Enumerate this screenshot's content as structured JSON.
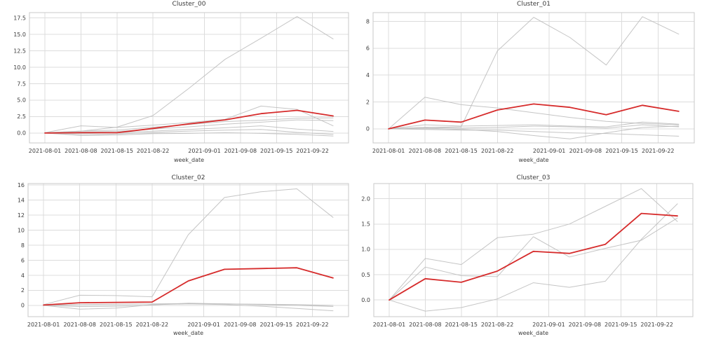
{
  "figure": {
    "background": "#ffffff",
    "grid_color": "#dcdcdc",
    "frame_color": "#c8c8c8",
    "tick_text_color": "#3c3c3c",
    "highlight_color": "#d62b2b",
    "background_series_color": "#bfbfbf"
  },
  "chart_data": [
    {
      "type": "line",
      "title": "Cluster_00",
      "xlabel": "week_date",
      "grid": true,
      "legend": "none",
      "x_days": [
        0,
        7,
        14,
        21,
        28,
        35,
        42,
        49,
        56
      ],
      "x_point_dates": [
        "2021-08-01",
        "2021-08-08",
        "2021-08-15",
        "2021-08-22",
        "2021-08-29",
        "2021-09-05",
        "2021-09-12",
        "2021-09-19",
        "2021-09-26"
      ],
      "xlim_days": [
        -3,
        59
      ],
      "tick_days": [
        0,
        7,
        14,
        21,
        31,
        38,
        45,
        52
      ],
      "tick_labels": [
        "2021-08-01",
        "2021-08-08",
        "2021-08-15",
        "2021-08-22",
        "2021-09-01",
        "2021-09-08",
        "2021-09-15",
        "2021-09-22"
      ],
      "ylim": [
        -1.5,
        18.3
      ],
      "ytick_values": [
        0,
        2.5,
        5,
        7.5,
        10,
        12.5,
        15,
        17.5
      ],
      "ytick_labels": [
        "0.0",
        "2.5",
        "5.0",
        "7.5",
        "10.0",
        "12.5",
        "15.0",
        "17.5"
      ],
      "series": [
        {
          "name": "background-1",
          "role": "background",
          "values": [
            0.05,
            0.3,
            0.9,
            2.65,
            6.8,
            11.2,
            14.4,
            17.7,
            14.3
          ]
        },
        {
          "name": "background-2",
          "role": "background",
          "values": [
            0.05,
            1.1,
            0.85,
            1.2,
            1.6,
            2.1,
            4.1,
            3.6,
            1.1
          ]
        },
        {
          "name": "background-3",
          "role": "background",
          "values": [
            0.0,
            0.3,
            0.45,
            0.9,
            1.3,
            1.75,
            1.95,
            2.25,
            2.3
          ]
        },
        {
          "name": "background-4",
          "role": "background",
          "values": [
            0.0,
            0.15,
            0.25,
            0.6,
            0.95,
            1.35,
            1.65,
            2.0,
            1.9
          ]
        },
        {
          "name": "background-5",
          "role": "background",
          "values": [
            0.0,
            -0.1,
            0.05,
            0.3,
            0.55,
            0.8,
            1.1,
            0.6,
            0.25
          ]
        },
        {
          "name": "background-6",
          "role": "background",
          "values": [
            0.0,
            -0.3,
            -0.15,
            0.1,
            0.3,
            0.45,
            0.55,
            0.1,
            -0.2
          ]
        },
        {
          "name": "background-7",
          "role": "background",
          "values": [
            0.0,
            -0.35,
            -0.3,
            -0.1,
            -0.05,
            0.05,
            -0.05,
            -0.2,
            -0.45
          ]
        },
        {
          "name": "highlight",
          "role": "highlight",
          "values": [
            0.0,
            0.05,
            0.05,
            0.7,
            1.4,
            2.0,
            2.95,
            3.45,
            2.6
          ]
        }
      ]
    },
    {
      "type": "line",
      "title": "Cluster_01",
      "xlabel": "week_date",
      "grid": true,
      "legend": "none",
      "x_days": [
        0,
        7,
        14,
        21,
        28,
        35,
        42,
        49,
        56
      ],
      "x_point_dates": [
        "2021-08-01",
        "2021-08-08",
        "2021-08-15",
        "2021-08-22",
        "2021-08-29",
        "2021-09-05",
        "2021-09-12",
        "2021-09-19",
        "2021-09-26"
      ],
      "xlim_days": [
        -3,
        59
      ],
      "tick_days": [
        0,
        7,
        14,
        21,
        31,
        38,
        45,
        52
      ],
      "tick_labels": [
        "2021-08-01",
        "2021-08-08",
        "2021-08-15",
        "2021-08-22",
        "2021-09-01",
        "2021-09-08",
        "2021-09-15",
        "2021-09-22"
      ],
      "ylim": [
        -1.05,
        8.65
      ],
      "ytick_values": [
        0,
        2,
        4,
        6,
        8
      ],
      "ytick_labels": [
        "0",
        "2",
        "4",
        "6",
        "8"
      ],
      "series": [
        {
          "name": "background-1",
          "role": "background",
          "values": [
            0.0,
            0.1,
            0.15,
            5.8,
            8.3,
            6.8,
            4.75,
            8.35,
            7.05
          ]
        },
        {
          "name": "background-2",
          "role": "background",
          "values": [
            0.0,
            2.35,
            1.8,
            1.55,
            1.2,
            0.85,
            0.55,
            0.4,
            0.3
          ]
        },
        {
          "name": "background-3",
          "role": "background",
          "values": [
            0.0,
            0.3,
            0.2,
            0.25,
            0.3,
            0.2,
            0.15,
            0.5,
            0.35
          ]
        },
        {
          "name": "background-4",
          "role": "background",
          "values": [
            0.0,
            0.1,
            0.05,
            0.1,
            0.2,
            0.15,
            0.05,
            0.3,
            0.15
          ]
        },
        {
          "name": "background-5",
          "role": "background",
          "values": [
            0.0,
            0.05,
            -0.05,
            -0.2,
            -0.5,
            -0.75,
            -0.3,
            0.1,
            0.2
          ]
        },
        {
          "name": "background-6",
          "role": "background",
          "values": [
            0.0,
            -0.05,
            -0.1,
            -0.1,
            -0.2,
            -0.3,
            -0.35,
            -0.45,
            -0.55
          ]
        },
        {
          "name": "highlight",
          "role": "highlight",
          "values": [
            0.0,
            0.65,
            0.5,
            1.4,
            1.85,
            1.6,
            1.05,
            1.75,
            1.3
          ]
        }
      ]
    },
    {
      "type": "line",
      "title": "Cluster_02",
      "xlabel": "week_date",
      "grid": true,
      "legend": "none",
      "x_days": [
        0,
        7,
        14,
        21,
        28,
        35,
        42,
        49,
        56
      ],
      "x_point_dates": [
        "2021-08-01",
        "2021-08-08",
        "2021-08-15",
        "2021-08-22",
        "2021-08-29",
        "2021-09-05",
        "2021-09-12",
        "2021-09-19",
        "2021-09-26"
      ],
      "xlim_days": [
        -3,
        59
      ],
      "tick_days": [
        0,
        7,
        14,
        21,
        31,
        38,
        45,
        52
      ],
      "tick_labels": [
        "2021-08-01",
        "2021-08-08",
        "2021-08-15",
        "2021-08-22",
        "2021-09-01",
        "2021-09-08",
        "2021-09-15",
        "2021-09-22"
      ],
      "ylim": [
        -1.5,
        16.2
      ],
      "ytick_values": [
        0,
        2,
        4,
        6,
        8,
        10,
        12,
        14,
        16
      ],
      "ytick_labels": [
        "0",
        "2",
        "4",
        "6",
        "8",
        "10",
        "12",
        "14",
        "16"
      ],
      "series": [
        {
          "name": "background-1",
          "role": "background",
          "values": [
            0.1,
            1.35,
            1.3,
            1.15,
            9.4,
            14.35,
            15.1,
            15.5,
            11.7
          ]
        },
        {
          "name": "background-2",
          "role": "background",
          "values": [
            0.0,
            -0.5,
            -0.35,
            0.1,
            0.2,
            0.1,
            -0.1,
            -0.4,
            -0.72
          ]
        },
        {
          "name": "background-3",
          "role": "background",
          "values": [
            0.0,
            -0.15,
            -0.1,
            0.05,
            0.3,
            0.2,
            0.1,
            0.0,
            -0.15
          ]
        },
        {
          "name": "background-4",
          "role": "background",
          "values": [
            0.05,
            0.1,
            0.15,
            0.2,
            0.25,
            0.2,
            0.15,
            0.1,
            0.0
          ]
        },
        {
          "name": "highlight",
          "role": "highlight",
          "values": [
            0.05,
            0.35,
            0.4,
            0.45,
            3.25,
            4.8,
            4.9,
            5.0,
            3.65
          ]
        }
      ]
    },
    {
      "type": "line",
      "title": "Cluster_03",
      "xlabel": "week_date",
      "grid": true,
      "legend": "none",
      "x_days": [
        0,
        7,
        14,
        21,
        28,
        35,
        42,
        49,
        56
      ],
      "x_point_dates": [
        "2021-08-01",
        "2021-08-08",
        "2021-08-15",
        "2021-08-22",
        "2021-08-29",
        "2021-09-05",
        "2021-09-12",
        "2021-09-19",
        "2021-09-26"
      ],
      "xlim_days": [
        -3,
        59
      ],
      "tick_days": [
        0,
        7,
        14,
        21,
        31,
        38,
        45,
        52
      ],
      "tick_labels": [
        "2021-08-01",
        "2021-08-08",
        "2021-08-15",
        "2021-08-22",
        "2021-09-01",
        "2021-09-08",
        "2021-09-15",
        "2021-09-22"
      ],
      "ylim": [
        -0.33,
        2.3
      ],
      "ytick_values": [
        0,
        0.5,
        1.0,
        1.5,
        2.0
      ],
      "ytick_labels": [
        "0.0",
        "0.5",
        "1.0",
        "1.5",
        "2.0"
      ],
      "series": [
        {
          "name": "background-1",
          "role": "background",
          "values": [
            0.0,
            0.82,
            0.7,
            1.23,
            1.3,
            1.5,
            1.85,
            2.2,
            1.55
          ]
        },
        {
          "name": "background-2",
          "role": "background",
          "values": [
            0.0,
            0.65,
            0.48,
            0.46,
            1.25,
            0.85,
            1.02,
            1.18,
            1.62
          ]
        },
        {
          "name": "background-3",
          "role": "background",
          "values": [
            0.0,
            -0.22,
            -0.15,
            0.02,
            0.34,
            0.25,
            0.37,
            1.2,
            1.9
          ]
        },
        {
          "name": "highlight",
          "role": "highlight",
          "values": [
            0.0,
            0.42,
            0.35,
            0.57,
            0.96,
            0.92,
            1.1,
            1.71,
            1.66
          ]
        }
      ]
    }
  ]
}
